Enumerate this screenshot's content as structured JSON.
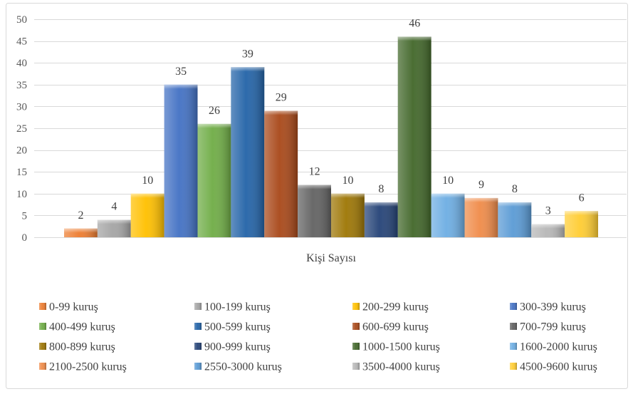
{
  "chart_data": {
    "type": "bar",
    "categories": [
      "Kişi Sayısı"
    ],
    "series": [
      {
        "name": "0-99 kuruş",
        "values": [
          2
        ],
        "color": "#ED7D31"
      },
      {
        "name": "100-199 kuruş",
        "values": [
          4
        ],
        "color": "#A5A5A5"
      },
      {
        "name": "200-299 kuruş",
        "values": [
          10
        ],
        "color": "#FFC000"
      },
      {
        "name": "300-399 kuruş",
        "values": [
          35
        ],
        "color": "#4472C4"
      },
      {
        "name": "400-499 kuruş",
        "values": [
          26
        ],
        "color": "#70AD47"
      },
      {
        "name": "500-599 kuruş",
        "values": [
          39
        ],
        "color": "#2464A8"
      },
      {
        "name": "600-699 kuruş",
        "values": [
          29
        ],
        "color": "#A9491A"
      },
      {
        "name": "700-799 kuruş",
        "values": [
          12
        ],
        "color": "#636363"
      },
      {
        "name": "800-899 kuruş",
        "values": [
          10
        ],
        "color": "#9E7706"
      },
      {
        "name": "900-999 kuruş",
        "values": [
          8
        ],
        "color": "#264478"
      },
      {
        "name": "1000-1500 kuruş",
        "values": [
          46
        ],
        "color": "#43682B"
      },
      {
        "name": "1600-2000 kuruş",
        "values": [
          10
        ],
        "color": "#6EAEE3"
      },
      {
        "name": "2100-2500 kuruş",
        "values": [
          9
        ],
        "color": "#F08C4A"
      },
      {
        "name": "2550-3000 kuruş",
        "values": [
          8
        ],
        "color": "#5B9BD5"
      },
      {
        "name": "3500-4000 kuruş",
        "values": [
          3
        ],
        "color": "#B7B7B7"
      },
      {
        "name": "4500-9600 kuruş",
        "values": [
          6
        ],
        "color": "#FFCD33"
      }
    ],
    "ylim": [
      0,
      50
    ],
    "yticks": [
      0,
      5,
      10,
      15,
      20,
      25,
      30,
      35,
      40,
      45,
      50
    ],
    "data_labels": true,
    "grid": true,
    "legend_position": "bottom"
  }
}
